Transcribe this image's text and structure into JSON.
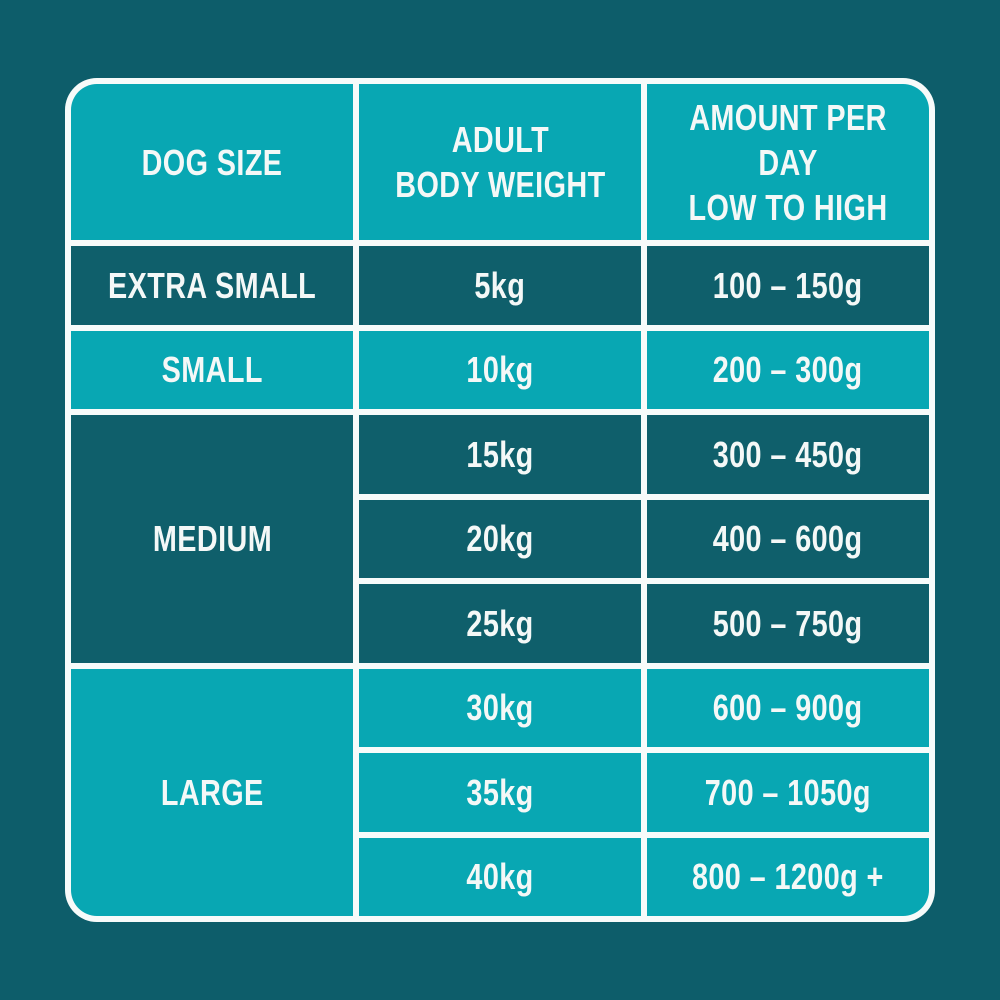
{
  "colors": {
    "background": "#0d5d6a",
    "cell_dark": "#0f5f6b",
    "cell_light": "#08a7b3",
    "divider": "#f7fbfa",
    "text": "#f4f8f7"
  },
  "table": {
    "headers": [
      {
        "label": "DOG SIZE"
      },
      {
        "label": "ADULT\nBODY WEIGHT"
      },
      {
        "label": "AMOUNT PER DAY\nLOW TO HIGH"
      }
    ],
    "groups": [
      {
        "size": "EXTRA SMALL",
        "shade": "dark",
        "rows": [
          {
            "weight": "5kg",
            "amount": "100 – 150g"
          }
        ]
      },
      {
        "size": "SMALL",
        "shade": "light",
        "rows": [
          {
            "weight": "10kg",
            "amount": "200 – 300g"
          }
        ]
      },
      {
        "size": "MEDIUM",
        "shade": "dark",
        "rows": [
          {
            "weight": "15kg",
            "amount": "300 – 450g"
          },
          {
            "weight": "20kg",
            "amount": "400 – 600g"
          },
          {
            "weight": "25kg",
            "amount": "500 – 750g"
          }
        ]
      },
      {
        "size": "LARGE",
        "shade": "light",
        "rows": [
          {
            "weight": "30kg",
            "amount": "600 – 900g"
          },
          {
            "weight": "35kg",
            "amount": "700 – 1050g"
          },
          {
            "weight": "40kg",
            "amount": "800 – 1200g +"
          }
        ]
      }
    ]
  },
  "chart_data": {
    "type": "table",
    "columns": [
      "DOG SIZE",
      "ADULT BODY WEIGHT",
      "AMOUNT PER DAY LOW TO HIGH"
    ],
    "rows": [
      [
        "EXTRA SMALL",
        "5kg",
        "100 – 150g"
      ],
      [
        "SMALL",
        "10kg",
        "200 – 300g"
      ],
      [
        "MEDIUM",
        "15kg",
        "300 – 450g"
      ],
      [
        "MEDIUM",
        "20kg",
        "400 – 600g"
      ],
      [
        "MEDIUM",
        "25kg",
        "500 – 750g"
      ],
      [
        "LARGE",
        "30kg",
        "600 – 900g"
      ],
      [
        "LARGE",
        "35kg",
        "700 – 1050g"
      ],
      [
        "LARGE",
        "40kg",
        "800 – 1200g +"
      ]
    ]
  }
}
